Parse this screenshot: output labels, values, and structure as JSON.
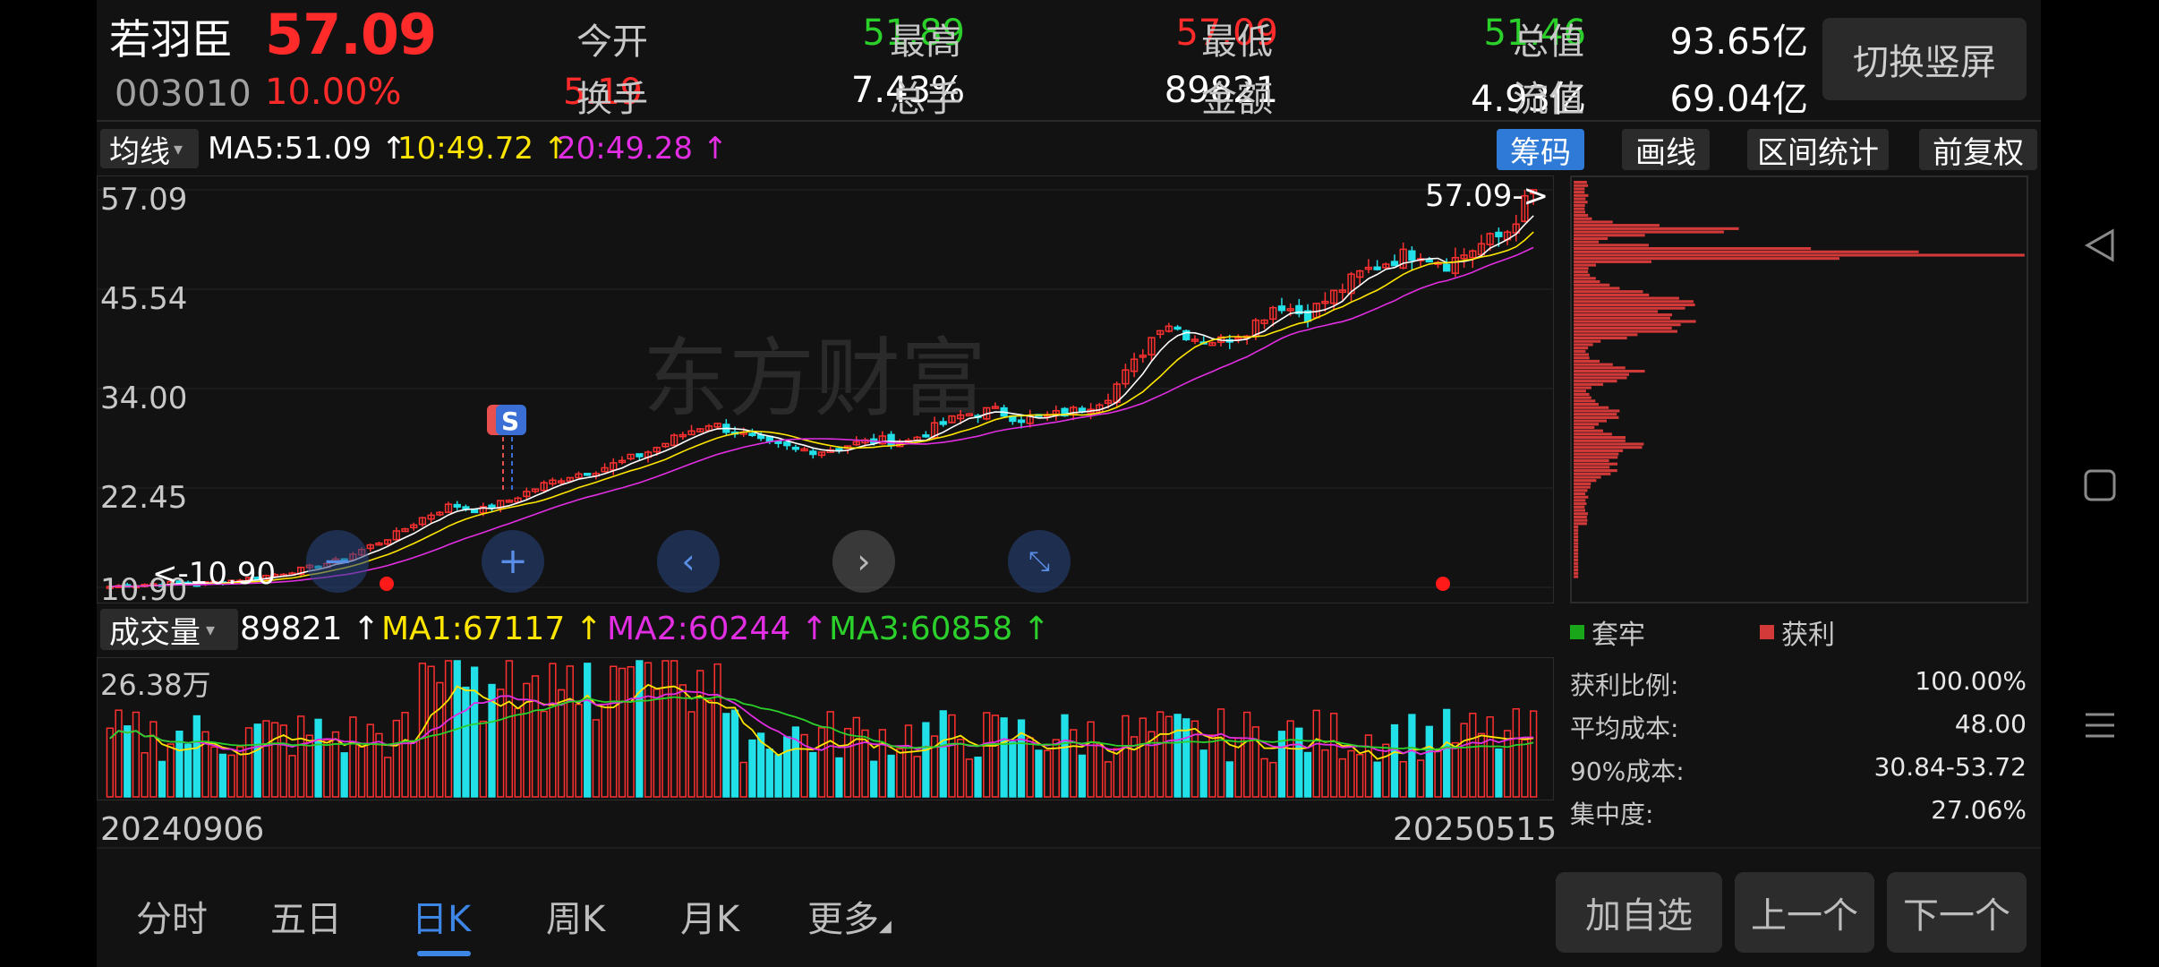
{
  "stock": {
    "name": "若羽臣",
    "price": "57.09",
    "code": "003010",
    "change_pct": "10.00%",
    "change": "5.19"
  },
  "quotes": [
    {
      "label": "今开",
      "value": "51.89",
      "color": "#2bd02b"
    },
    {
      "label": "最高",
      "value": "57.09",
      "color": "#ff2b2b"
    },
    {
      "label": "最低",
      "value": "51.46",
      "color": "#2bd02b"
    },
    {
      "label": "总值",
      "value": "93.65亿",
      "color": "#ffffff"
    },
    {
      "label": "换手",
      "value": "7.43%",
      "color": "#ffffff"
    },
    {
      "label": "总手",
      "value": "89821",
      "color": "#ffffff"
    },
    {
      "label": "金额",
      "value": "4.93亿",
      "color": "#ffffff"
    },
    {
      "label": "流值",
      "value": "69.04亿",
      "color": "#ffffff"
    }
  ],
  "switch_label": "切换竖屏",
  "ma": {
    "dropdown": "均线",
    "ma5": "MA5:51.09",
    "ma10": "10:49.72",
    "ma20": "20:49.28"
  },
  "tools": [
    "筹码",
    "画线",
    "区间统计",
    "前复权"
  ],
  "axis": {
    "y_ticks": [
      "57.09",
      "45.54",
      "34.00",
      "22.45",
      "10.90"
    ],
    "high_label": "57.09->",
    "low_label": "<-10.90",
    "badge": "S",
    "watermark": "东方财富"
  },
  "chip": {
    "legend": [
      "套牢",
      "获利"
    ],
    "stats": [
      {
        "label": "获利比例:",
        "value": "100.00%"
      },
      {
        "label": "平均成本:",
        "value": "48.00"
      },
      {
        "label": "90%成本:",
        "value": "30.84-53.72"
      },
      {
        "label": "集中度:",
        "value": "27.06%"
      }
    ]
  },
  "volume": {
    "dropdown": "成交量",
    "vol": "89821",
    "ma1": "MA1:67117",
    "ma2": "MA2:60244",
    "ma3": "MA3:60858",
    "ymax": "26.38万"
  },
  "dates": {
    "start": "20240906",
    "end": "20250515"
  },
  "tabs": [
    "分时",
    "五日",
    "日K",
    "周K",
    "月K",
    "更多"
  ],
  "bottom_buttons": [
    "加自选",
    "上一个",
    "下一个"
  ],
  "chart_data": {
    "type": "candlestick",
    "ylim": [
      10.9,
      57.09
    ],
    "y_ticks": [
      57.09,
      45.54,
      34.0,
      22.45,
      10.9
    ],
    "x_range": [
      "20240906",
      "20250515"
    ],
    "close_trend": [
      11.0,
      11.2,
      11.4,
      11.3,
      11.6,
      12.0,
      12.5,
      13.2,
      14.0,
      15.5,
      17.0,
      19.0,
      20.5,
      19.8,
      21.0,
      22.5,
      23.8,
      24.5,
      25.5,
      26.8,
      28.5,
      30.0,
      29.0,
      27.5,
      27.0,
      26.8,
      27.5,
      28.0,
      27.8,
      29.5,
      31.0,
      31.5,
      30.5,
      30.8,
      31.5,
      33.0,
      37.0,
      42.0,
      40.0,
      39.5,
      41.0,
      44.0,
      42.5,
      45.0,
      47.5,
      49.0,
      50.0,
      48.5,
      50.5,
      51.9,
      57.09
    ]
  }
}
